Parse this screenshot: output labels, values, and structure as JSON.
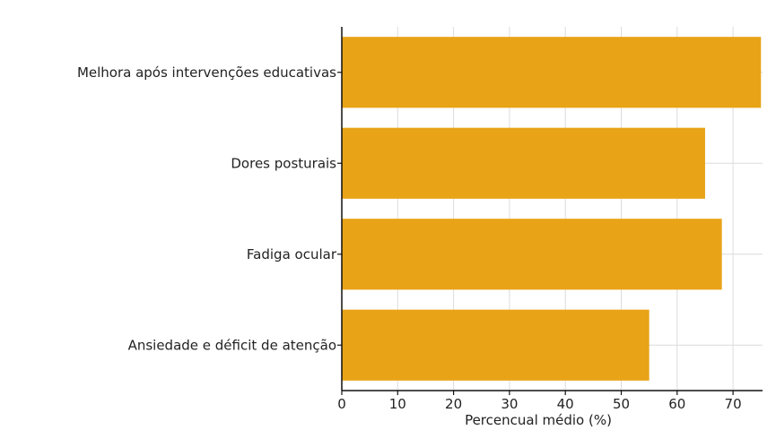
{
  "chart_data": {
    "type": "bar",
    "orientation": "horizontal",
    "title": "",
    "xlabel": "Percencual médio (%)",
    "ylabel": "",
    "categories": [
      "Melhora após intervenções educativas",
      "Dores posturais",
      "Fadiga ocular",
      "Ansiedade e déficit de atenção"
    ],
    "values": [
      75,
      65,
      68,
      55
    ],
    "xlim": [
      0,
      75
    ],
    "xticks": [
      0,
      10,
      20,
      30,
      40,
      50,
      60,
      70
    ],
    "grid": true,
    "bar_color": "#E8A317"
  }
}
